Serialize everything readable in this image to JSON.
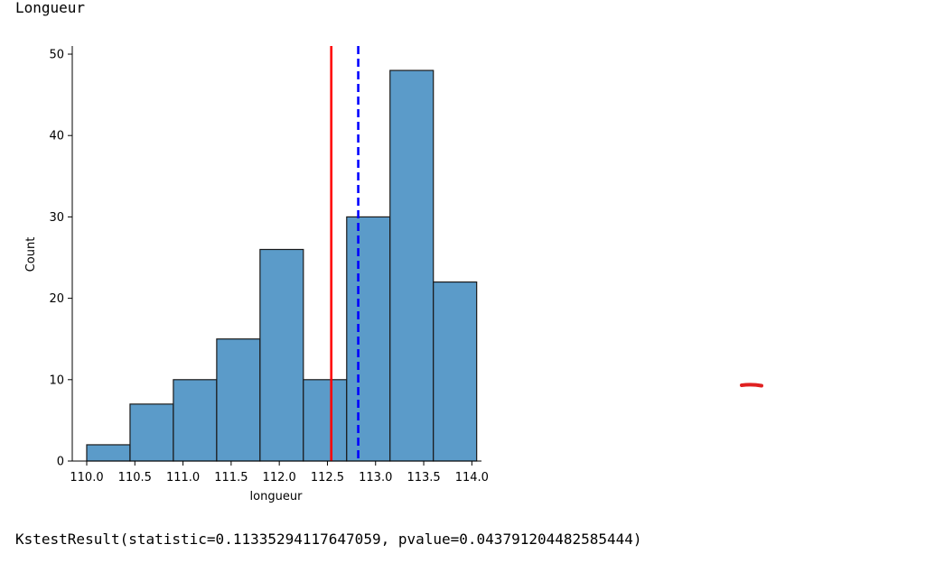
{
  "output": {
    "title": "Longueur",
    "result": "KstestResult(statistic=0.11335294117647059, pvalue=0.043791204482585444)"
  },
  "colors": {
    "bar_fill": "#5b9bc9",
    "bar_edge": "#1a1a1a",
    "mean_line": "#ff0000",
    "median_line": "#0000ff",
    "annotation": "#e02020"
  },
  "chart_data": {
    "type": "bar",
    "subtype": "histogram",
    "xlabel": "longueur",
    "ylabel": "Count",
    "xlim": [
      109.85,
      114.1
    ],
    "ylim": [
      0,
      51
    ],
    "xticks": [
      110.0,
      110.5,
      111.0,
      111.5,
      112.0,
      112.5,
      113.0,
      113.5,
      114.0
    ],
    "xtick_labels": [
      "110.0",
      "110.5",
      "111.0",
      "111.5",
      "112.0",
      "112.5",
      "113.0",
      "113.5",
      "114.0"
    ],
    "yticks": [
      0,
      10,
      20,
      30,
      40,
      50
    ],
    "ytick_labels": [
      "0",
      "10",
      "20",
      "30",
      "40",
      "50"
    ],
    "bins": [
      [
        110.0,
        110.45
      ],
      [
        110.45,
        110.9
      ],
      [
        110.9,
        111.35
      ],
      [
        111.35,
        111.8
      ],
      [
        111.8,
        112.25
      ],
      [
        112.25,
        112.7
      ],
      [
        112.7,
        113.15
      ],
      [
        113.15,
        113.6
      ],
      [
        113.6,
        114.05
      ]
    ],
    "values": [
      2,
      7,
      10,
      15,
      26,
      10,
      30,
      48,
      22
    ],
    "vlines": [
      {
        "x": 112.54,
        "style": "solid",
        "color": "red"
      },
      {
        "x": 112.82,
        "style": "dashed",
        "color": "blue"
      }
    ],
    "grid": false
  }
}
